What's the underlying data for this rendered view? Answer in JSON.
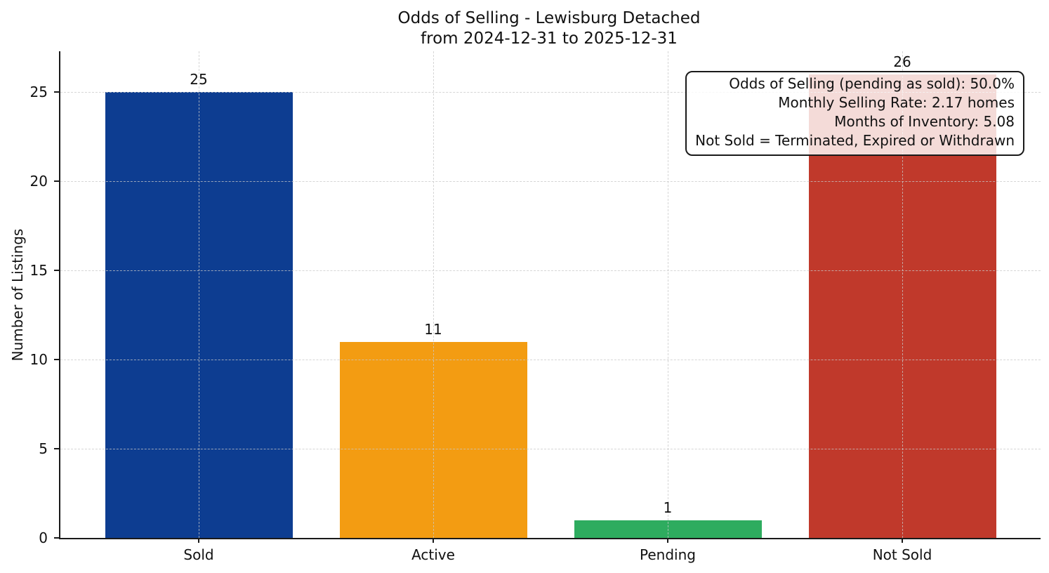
{
  "title": {
    "line1": "Odds of Selling - Lewisburg Detached",
    "line2": "from 2024-12-31 to 2025-12-31"
  },
  "chart_data": {
    "type": "bar",
    "title": "Odds of Selling - Lewisburg Detached\nfrom 2024-12-31 to 2025-12-31",
    "categories": [
      "Sold",
      "Active",
      "Pending",
      "Not Sold"
    ],
    "values": [
      25,
      11,
      1,
      26
    ],
    "bar_colors": [
      "#0d3d91",
      "#f39c12",
      "#2eac5f",
      "#c0392b"
    ],
    "xlabel": "",
    "ylabel": "Number of Listings",
    "ylim": [
      0,
      27.3
    ],
    "yticks": [
      0,
      5,
      10,
      15,
      20,
      25
    ],
    "grid": "dashed gridlines, both axes, drawn above bars",
    "legend": "none",
    "annotation_box": {
      "position": "top-right",
      "align": "right",
      "lines": [
        "Odds of Selling (pending as sold): 50.0%",
        "Monthly Selling Rate: 2.17 homes",
        "Months of Inventory: 5.08",
        "Not Sold = Terminated, Expired or Withdrawn"
      ]
    }
  }
}
